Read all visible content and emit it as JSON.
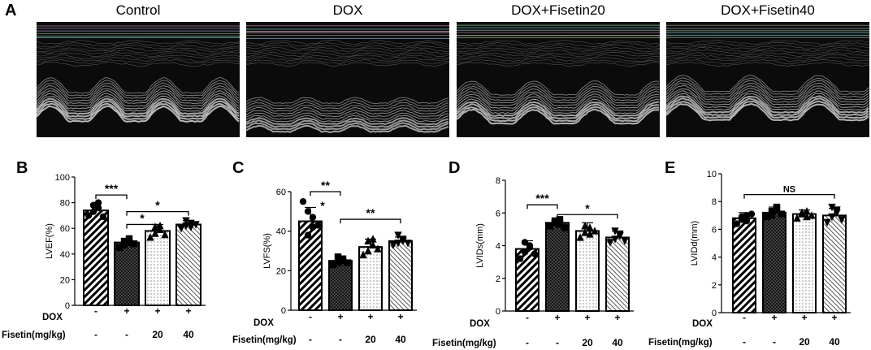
{
  "figure": {
    "panel_letters": [
      "A",
      "B",
      "C",
      "D",
      "E"
    ]
  },
  "echo_panels": [
    {
      "title": "Control"
    },
    {
      "title": "DOX"
    },
    {
      "title": "DOX+Fisetin20"
    },
    {
      "title": "DOX+Fisetin40"
    }
  ],
  "colors": {
    "bar_edge": "#000000",
    "background": "#ffffff",
    "echo_bg": "#0a0a0a"
  },
  "chart_data": [
    {
      "type": "bar",
      "panel": "B",
      "ylabel": "LVEF(%)",
      "ylim": [
        0,
        100
      ],
      "yticks": [
        0,
        20,
        40,
        60,
        80,
        100
      ],
      "categories": [
        "Control",
        "DOX",
        "DOX+Fisetin20",
        "DOX+Fisetin40"
      ],
      "values": [
        74,
        49,
        58,
        63
      ],
      "errors": [
        5,
        3,
        5,
        3
      ],
      "markers": [
        "circle",
        "square",
        "triangle-up",
        "triangle-down"
      ],
      "points": [
        [
          70,
          73,
          76,
          78,
          80,
          69
        ],
        [
          45,
          47,
          49,
          50,
          52,
          48
        ],
        [
          53,
          56,
          59,
          61,
          62,
          55
        ],
        [
          60,
          62,
          64,
          66,
          61,
          63
        ]
      ],
      "patterns": [
        "diag-dense",
        "crosshatch",
        "dots",
        "diag-light"
      ],
      "row_labels": [
        "DOX",
        "Fisetin(mg/kg)"
      ],
      "dox_row": [
        "-",
        "+",
        "+",
        "+"
      ],
      "fisetin_row": [
        "-",
        "-",
        "20",
        "40"
      ],
      "significance": [
        {
          "from": 0,
          "to": 1,
          "label": "***",
          "y": 86
        },
        {
          "from": 1,
          "to": 3,
          "label": "*",
          "y": 73
        },
        {
          "from": 1,
          "to": 2,
          "label": "*",
          "y": 63
        }
      ]
    },
    {
      "type": "bar",
      "panel": "C",
      "ylabel": "LVFS(%)",
      "ylim": [
        0,
        60
      ],
      "yticks": [
        0,
        20,
        40,
        60
      ],
      "categories": [
        "Control",
        "DOX",
        "DOX+Fisetin20",
        "DOX+Fisetin40"
      ],
      "values": [
        45,
        25,
        32,
        35
      ],
      "errors": [
        7,
        2,
        4,
        2
      ],
      "markers": [
        "circle",
        "square",
        "triangle-up",
        "triangle-down"
      ],
      "points": [
        [
          55,
          50,
          42,
          38,
          47,
          43
        ],
        [
          23,
          24,
          26,
          27,
          25,
          24
        ],
        [
          28,
          30,
          33,
          35,
          36,
          31
        ],
        [
          33,
          34,
          36,
          38,
          35,
          34
        ]
      ],
      "patterns": [
        "diag-dense",
        "crosshatch",
        "dots",
        "diag-light"
      ],
      "row_labels": [
        "DOX",
        "Fisetin(mg/kg)"
      ],
      "dox_row": [
        "-",
        "+",
        "+",
        "+"
      ],
      "fisetin_row": [
        "-",
        "-",
        "20",
        "40"
      ],
      "significance": [
        {
          "from": 0,
          "to": 1,
          "label": "**",
          "y": 60
        },
        {
          "from": 1,
          "to": 3,
          "label": "**",
          "y": 46
        }
      ],
      "point_annotation": {
        "label": "*",
        "group": 0,
        "y": 55
      }
    },
    {
      "type": "bar",
      "panel": "D",
      "ylabel": "LVIDs(mm)",
      "ylim": [
        0,
        8
      ],
      "yticks": [
        0,
        2,
        4,
        6,
        8
      ],
      "categories": [
        "Control",
        "DOX",
        "DOX+Fisetin20",
        "DOX+Fisetin40"
      ],
      "values": [
        3.8,
        5.4,
        4.9,
        4.5
      ],
      "errors": [
        0.5,
        0.3,
        0.5,
        0.4
      ],
      "markers": [
        "circle",
        "square",
        "triangle-up",
        "triangle-down"
      ],
      "points": [
        [
          3.2,
          3.6,
          3.9,
          4.2,
          4.0,
          3.5
        ],
        [
          5.2,
          5.4,
          5.6,
          5.5,
          5.3,
          5.1
        ],
        [
          4.5,
          4.8,
          5.1,
          5.2,
          4.7,
          4.9
        ],
        [
          4.2,
          4.4,
          4.7,
          4.9,
          4.6,
          4.3
        ]
      ],
      "patterns": [
        "diag-dense",
        "crosshatch",
        "dots",
        "diag-light"
      ],
      "row_labels": [
        "DOX",
        "Fisetin(mg/kg)"
      ],
      "dox_row": [
        "-",
        "+",
        "+",
        "+"
      ],
      "fisetin_row": [
        "-",
        "-",
        "20",
        "40"
      ],
      "significance": [
        {
          "from": 0,
          "to": 1,
          "label": "***",
          "y": 6.5
        },
        {
          "from": 1,
          "to": 3,
          "label": "*",
          "y": 5.9
        }
      ]
    },
    {
      "type": "bar",
      "panel": "E",
      "ylabel": "LVIDd(mm)",
      "ylim": [
        0,
        10
      ],
      "yticks": [
        0,
        2,
        4,
        6,
        8,
        10
      ],
      "categories": [
        "Control",
        "DOX",
        "DOX+Fisetin20",
        "DOX+Fisetin40"
      ],
      "values": [
        6.8,
        7.2,
        7.1,
        7.0
      ],
      "errors": [
        0.4,
        0.4,
        0.3,
        0.5
      ],
      "markers": [
        "circle",
        "square",
        "triangle-up",
        "triangle-down"
      ],
      "points": [
        [
          6.4,
          6.7,
          7.0,
          6.9,
          6.6,
          7.1
        ],
        [
          6.9,
          7.3,
          7.5,
          7.0,
          7.6,
          7.1
        ],
        [
          6.8,
          7.1,
          7.3,
          7.2,
          6.9,
          7.0
        ],
        [
          6.5,
          6.9,
          7.4,
          7.6,
          7.2,
          6.7
        ]
      ],
      "patterns": [
        "diag-dense",
        "crosshatch",
        "dots",
        "diag-light"
      ],
      "row_labels": [
        "DOX",
        "Fisetin(mg/kg)"
      ],
      "dox_row": [
        "-",
        "+",
        "+",
        "+"
      ],
      "fisetin_row": [
        "-",
        "-",
        "20",
        "40"
      ],
      "significance": [
        {
          "from": 0,
          "to": 3,
          "label": "NS",
          "y": 8.5
        }
      ]
    }
  ]
}
